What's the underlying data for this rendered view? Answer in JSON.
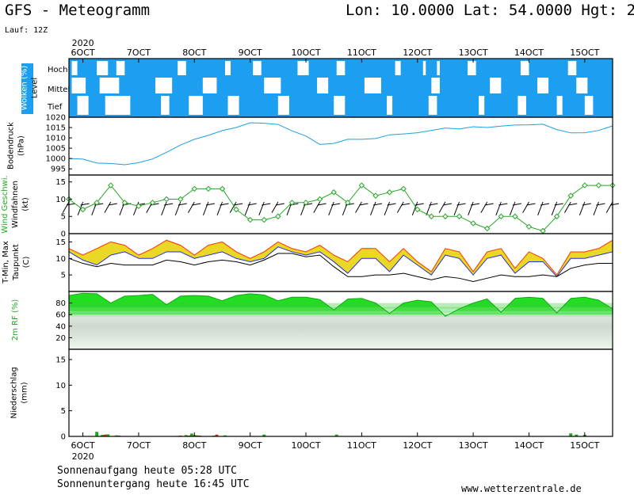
{
  "header": {
    "title": "GFS - Meteogramm",
    "location": "Lon: 10.0000 Lat: 54.0000 Hgt: 2",
    "run": "Lauf: 12Z"
  },
  "footer": {
    "sunrise": "Sonnenaufgang heute 05:28 UTC",
    "sunset": "Sonnenuntergang heute 16:45 UTC",
    "site": "www.wetterzentrale.de"
  },
  "colors": {
    "cloud": "#1c9ff0",
    "pressure": "#1aa0e6",
    "wind": "#22a822",
    "tmax": "#ff3300",
    "tmin": "#2233dd",
    "band": "#e6d000",
    "rh": "#22dd22",
    "precip_rain": "#22aa22",
    "precip_conv": "#dd3300"
  },
  "chart_data": {
    "type": "meteogram",
    "time_axis": {
      "year": "2020",
      "start_day": "6OCT",
      "ticks": [
        "6OCT",
        "7OCT",
        "8OCT",
        "9OCT",
        "10OCT",
        "11OCT",
        "12OCT",
        "13OCT",
        "14OCT",
        "15OCT"
      ],
      "range_days": [
        5.75,
        15.5
      ]
    },
    "panels": [
      {
        "type": "heatmap",
        "name": "clouds",
        "ylabel": "Wolken (%)",
        "ylabel2": "Level",
        "levels": [
          "Hoch",
          "Mittel",
          "Tief"
        ],
        "clear_intervals": {
          "Hoch": [
            [
              5.8,
              5.9
            ],
            [
              6.25,
              6.45
            ],
            [
              6.6,
              6.75
            ],
            [
              7.7,
              7.85
            ],
            [
              8.55,
              8.65
            ],
            [
              9.05,
              9.2
            ],
            [
              9.85,
              10.05
            ],
            [
              10.55,
              10.7
            ],
            [
              11.6,
              11.7
            ],
            [
              12.1,
              12.15
            ],
            [
              12.35,
              12.4
            ],
            [
              12.9,
              13.05
            ],
            [
              13.85,
              14.0
            ],
            [
              14.7,
              14.85
            ]
          ],
          "Mittel": [
            [
              5.8,
              6.05
            ],
            [
              6.3,
              6.65
            ],
            [
              7.3,
              7.6
            ],
            [
              8.15,
              8.4
            ],
            [
              9.25,
              9.55
            ],
            [
              10.2,
              10.4
            ],
            [
              11.05,
              11.35
            ],
            [
              12.25,
              12.4
            ],
            [
              13.3,
              13.5
            ],
            [
              14.15,
              14.35
            ],
            [
              14.85,
              15.05
            ]
          ],
          "Tief": [
            [
              5.9,
              6.1
            ],
            [
              6.4,
              6.85
            ],
            [
              7.4,
              7.55
            ],
            [
              7.9,
              8.15
            ],
            [
              8.6,
              8.8
            ],
            [
              9.5,
              9.7
            ],
            [
              10.5,
              10.7
            ],
            [
              11.45,
              11.55
            ],
            [
              12.2,
              12.35
            ],
            [
              13.1,
              13.2
            ],
            [
              13.8,
              13.95
            ],
            [
              14.5,
              14.6
            ],
            [
              15.0,
              15.15
            ]
          ]
        }
      },
      {
        "type": "line",
        "name": "pressure",
        "ylabel": "Bodendruck",
        "unit": "(hPa)",
        "ylim": [
          992,
          1020
        ],
        "yticks": [
          995,
          1000,
          1005,
          1010,
          1015,
          1020
        ],
        "x": [
          5.75,
          6.0,
          6.25,
          6.5,
          6.75,
          7.0,
          7.25,
          7.5,
          7.75,
          8.0,
          8.25,
          8.5,
          8.75,
          9.0,
          9.25,
          9.5,
          9.75,
          10.0,
          10.25,
          10.5,
          10.75,
          11.0,
          11.25,
          11.5,
          11.75,
          12.0,
          12.25,
          12.5,
          12.75,
          13.0,
          13.25,
          13.5,
          13.75,
          14.0,
          14.25,
          14.5,
          14.75,
          15.0,
          15.25,
          15.5
        ],
        "values": [
          1000,
          999.7,
          997.8,
          997.6,
          997.0,
          998.0,
          999.8,
          1003.0,
          1006.5,
          1009.3,
          1011.2,
          1013.5,
          1015.0,
          1017.3,
          1017.1,
          1016.5,
          1013.4,
          1010.9,
          1006.8,
          1007.3,
          1009.3,
          1009.3,
          1009.7,
          1011.5,
          1011.9,
          1012.5,
          1013.6,
          1014.8,
          1014.3,
          1015.4,
          1015.0,
          1015.7,
          1016.2,
          1016.3,
          1016.6,
          1014.0,
          1012.4,
          1012.5,
          1013.6,
          1015.8
        ]
      },
      {
        "type": "line",
        "name": "wind",
        "ylabel": "Wind Geschwi.",
        "ylabel2": "Windfahnen",
        "unit": "(kt)",
        "ylim": [
          0,
          17
        ],
        "yticks": [
          0,
          5,
          10,
          15
        ],
        "x": [
          5.75,
          6.0,
          6.25,
          6.5,
          6.75,
          7.0,
          7.25,
          7.5,
          7.75,
          8.0,
          8.25,
          8.5,
          8.75,
          9.0,
          9.25,
          9.5,
          9.75,
          10.0,
          10.25,
          10.5,
          10.75,
          11.0,
          11.25,
          11.5,
          11.75,
          12.0,
          12.25,
          12.5,
          12.75,
          13.0,
          13.25,
          13.5,
          13.75,
          14.0,
          14.25,
          14.5,
          14.75,
          15.0,
          15.25,
          15.5
        ],
        "values": [
          10,
          7,
          9,
          14,
          9,
          8,
          9,
          10,
          10,
          13,
          13,
          13,
          7,
          4,
          4,
          5,
          9,
          9,
          10,
          12,
          9,
          14,
          11,
          12,
          13,
          7,
          5,
          5,
          5,
          3,
          1.5,
          5,
          5,
          2,
          0.8,
          5,
          11,
          14,
          14,
          14
        ]
      },
      {
        "type": "area",
        "name": "temperature",
        "ylabel": "T-Min, Max",
        "ylabel2": "Taupunkt",
        "unit": "(C)",
        "ylim": [
          0,
          17.5
        ],
        "yticks": [
          5,
          10,
          15
        ],
        "x": [
          5.75,
          6.0,
          6.25,
          6.5,
          6.75,
          7.0,
          7.25,
          7.5,
          7.75,
          8.0,
          8.25,
          8.5,
          8.75,
          9.0,
          9.25,
          9.5,
          9.75,
          10.0,
          10.25,
          10.5,
          10.75,
          11.0,
          11.25,
          11.5,
          11.75,
          12.0,
          12.25,
          12.5,
          12.75,
          13.0,
          13.25,
          13.5,
          13.75,
          14.0,
          14.25,
          14.5,
          14.75,
          15.0,
          15.25,
          15.5
        ],
        "series": [
          {
            "name": "T-Max",
            "values": [
              13,
              11,
              13,
              15,
              14,
              11,
              13,
              15.5,
              14,
              11,
              14,
              15,
              12,
              10,
              12,
              15,
              13,
              12,
              14,
              11,
              9,
              13,
              13,
              9,
              13,
              9,
              6,
              13,
              12,
              6,
              12,
              13,
              7,
              12,
              10,
              5,
              12,
              12,
              13,
              15.5
            ]
          },
          {
            "name": "T-Min",
            "values": [
              12,
              9.5,
              8,
              11,
              12,
              10,
              10,
              12,
              12,
              10,
              11,
              12,
              10,
              9,
              10,
              13.5,
              12,
              11,
              12,
              9,
              5.5,
              10,
              10,
              6,
              11,
              8,
              5,
              11,
              10,
              5,
              10,
              11,
              5.5,
              9,
              9,
              4.5,
              10,
              10,
              11,
              12
            ]
          },
          {
            "name": "Taupunkt",
            "values": [
              10,
              8.5,
              7.5,
              8.5,
              8,
              8,
              8,
              9.5,
              9,
              8,
              9,
              9.5,
              9,
              8,
              9.5,
              11.5,
              11.5,
              10.5,
              11,
              7.5,
              4.5,
              4.5,
              5,
              5,
              5.5,
              4.5,
              3.5,
              4.5,
              4,
              3,
              4,
              5,
              4.5,
              4.5,
              5,
              4.5,
              7,
              8,
              8.5,
              8.5
            ]
          }
        ]
      },
      {
        "type": "area",
        "name": "humidity",
        "ylabel": "2m RF (%)",
        "ylim": [
          0,
          100
        ],
        "yticks": [
          20,
          40,
          60,
          80
        ],
        "x": [
          5.75,
          6.0,
          6.25,
          6.5,
          6.75,
          7.0,
          7.25,
          7.5,
          7.75,
          8.0,
          8.25,
          8.5,
          8.75,
          9.0,
          9.25,
          9.5,
          9.75,
          10.0,
          10.25,
          10.5,
          10.75,
          11.0,
          11.25,
          11.5,
          11.75,
          12.0,
          12.25,
          12.5,
          12.75,
          13.0,
          13.25,
          13.5,
          13.75,
          14.0,
          14.25,
          14.5,
          14.75,
          15.0,
          15.25,
          15.5
        ],
        "values": [
          93,
          97,
          96,
          80,
          92,
          93,
          95,
          77,
          92,
          93,
          92,
          84,
          93,
          96,
          94,
          84,
          90,
          90,
          86,
          68,
          87,
          88,
          80,
          62,
          80,
          85,
          82,
          57,
          70,
          80,
          87,
          64,
          88,
          90,
          88,
          63,
          88,
          90,
          85,
          70
        ]
      },
      {
        "type": "bar",
        "name": "precipitation",
        "ylabel": "Niederschlag",
        "unit": "(mm)",
        "ylim": [
          0,
          17
        ],
        "yticks": [
          0,
          5,
          10,
          15
        ],
        "bars": [
          {
            "x": 6.25,
            "rain": 0.9,
            "conv": 0
          },
          {
            "x": 6.35,
            "rain": 0.3,
            "conv": 0.35
          },
          {
            "x": 6.45,
            "rain": 0.4,
            "conv": 0
          },
          {
            "x": 6.6,
            "rain": 0.2,
            "conv": 0.15
          },
          {
            "x": 7.7,
            "rain": 0.1,
            "conv": 0.15
          },
          {
            "x": 7.85,
            "rain": 0.25,
            "conv": 0.15
          },
          {
            "x": 7.95,
            "rain": 0.55,
            "conv": 0.25
          },
          {
            "x": 8.05,
            "rain": 0.2,
            "conv": 0.15
          },
          {
            "x": 8.35,
            "rain": 0.15,
            "conv": 0.35
          },
          {
            "x": 8.55,
            "rain": 0.2,
            "conv": 0
          },
          {
            "x": 9.25,
            "rain": 0.35,
            "conv": 0
          },
          {
            "x": 10.55,
            "rain": 0.35,
            "conv": 0
          },
          {
            "x": 12.0,
            "rain": 0.1,
            "conv": 0
          },
          {
            "x": 14.75,
            "rain": 0.6,
            "conv": 0
          },
          {
            "x": 14.85,
            "rain": 0.35,
            "conv": 0
          },
          {
            "x": 15.0,
            "rain": 0.3,
            "conv": 0
          }
        ]
      }
    ]
  }
}
